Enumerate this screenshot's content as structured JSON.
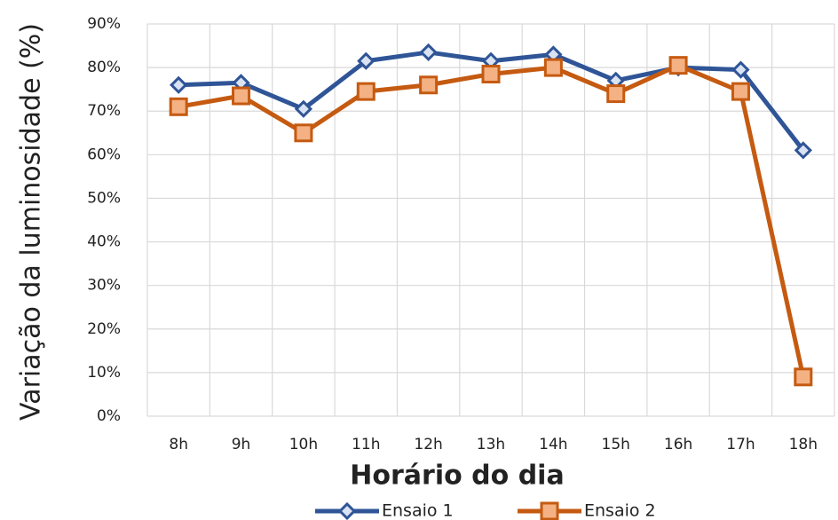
{
  "chart_data": {
    "type": "line",
    "x_label": "Horário do dia",
    "y_label": "Variação da luminosidade (%)",
    "categories": [
      "8h",
      "9h",
      "10h",
      "11h",
      "12h",
      "13h",
      "14h",
      "15h",
      "16h",
      "17h",
      "18h"
    ],
    "series": [
      {
        "name": "Ensaio 1",
        "color": "#2f5597",
        "marker": "diamond",
        "values": [
          76,
          76.5,
          70.5,
          81.5,
          83.5,
          81.5,
          83,
          77,
          80,
          79.5,
          61
        ]
      },
      {
        "name": "Ensaio 2",
        "color": "#c55a11",
        "marker": "square",
        "values": [
          71,
          73.5,
          65,
          74.5,
          76,
          78.5,
          80,
          74,
          80.5,
          74.5,
          9
        ]
      }
    ],
    "ylim": [
      0,
      90
    ],
    "yticks": [
      {
        "value": 0,
        "label": "0%"
      },
      {
        "value": 10,
        "label": "10%"
      },
      {
        "value": 20,
        "label": "20%"
      },
      {
        "value": 30,
        "label": "30%"
      },
      {
        "value": 40,
        "label": "40%"
      },
      {
        "value": 50,
        "label": "50%"
      },
      {
        "value": 60,
        "label": "60%"
      },
      {
        "value": 70,
        "label": "70%"
      },
      {
        "value": 80,
        "label": "80%"
      },
      {
        "value": 90,
        "label": "90%"
      }
    ],
    "grid": true,
    "legend": "bottom"
  }
}
